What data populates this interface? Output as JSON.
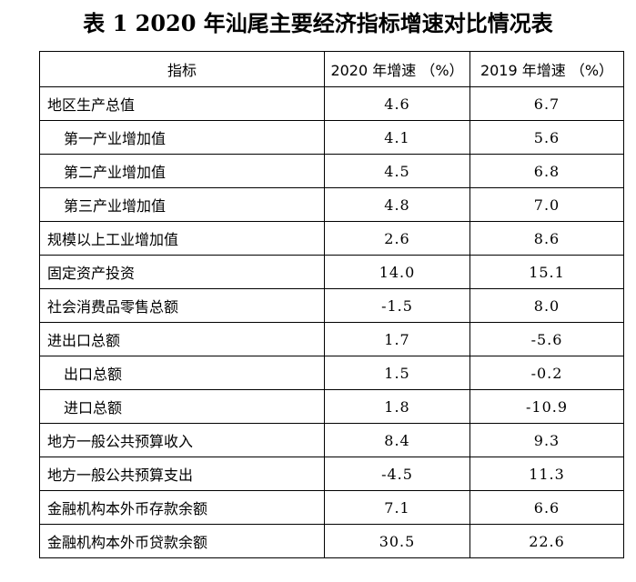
{
  "title": "表 1   2020 年汕尾主要经济指标增速对比情况表",
  "headers": [
    "指标",
    "2020 年增速 （%）",
    "2019 年增速 （%）"
  ],
  "rows": [
    {
      "name": "地区生产总值",
      "indent": false,
      "v2020": "4.6",
      "v2019": "6.7"
    },
    {
      "name": "第一产业增加值",
      "indent": true,
      "v2020": "4.1",
      "v2019": "5.6"
    },
    {
      "name": "第二产业增加值",
      "indent": true,
      "v2020": "4.5",
      "v2019": "6.8"
    },
    {
      "name": "第三产业增加值",
      "indent": true,
      "v2020": "4.8",
      "v2019": "7.0"
    },
    {
      "name": "规模以上工业增加值",
      "indent": false,
      "v2020": "2.6",
      "v2019": "8.6"
    },
    {
      "name": "固定资产投资",
      "indent": false,
      "v2020": "14.0",
      "v2019": "15.1"
    },
    {
      "name": "社会消费品零售总额",
      "indent": false,
      "v2020": "-1.5",
      "v2019": "8.0"
    },
    {
      "name": "进出口总额",
      "indent": false,
      "v2020": "1.7",
      "v2019": "-5.6"
    },
    {
      "name": "出口总额",
      "indent": true,
      "v2020": "1.5",
      "v2019": "-0.2"
    },
    {
      "name": "进口总额",
      "indent": true,
      "v2020": "1.8",
      "v2019": "-10.9"
    },
    {
      "name": "地方一般公共预算收入",
      "indent": false,
      "v2020": "8.4",
      "v2019": "9.3"
    },
    {
      "name": "地方一般公共预算支出",
      "indent": false,
      "v2020": "-4.5",
      "v2019": "11.3"
    },
    {
      "name": "金融机构本外币存款余额",
      "indent": false,
      "v2020": "7.1",
      "v2019": "6.6"
    },
    {
      "name": "金融机构本外币贷款余额",
      "indent": false,
      "v2020": "30.5",
      "v2019": "22.6"
    }
  ]
}
